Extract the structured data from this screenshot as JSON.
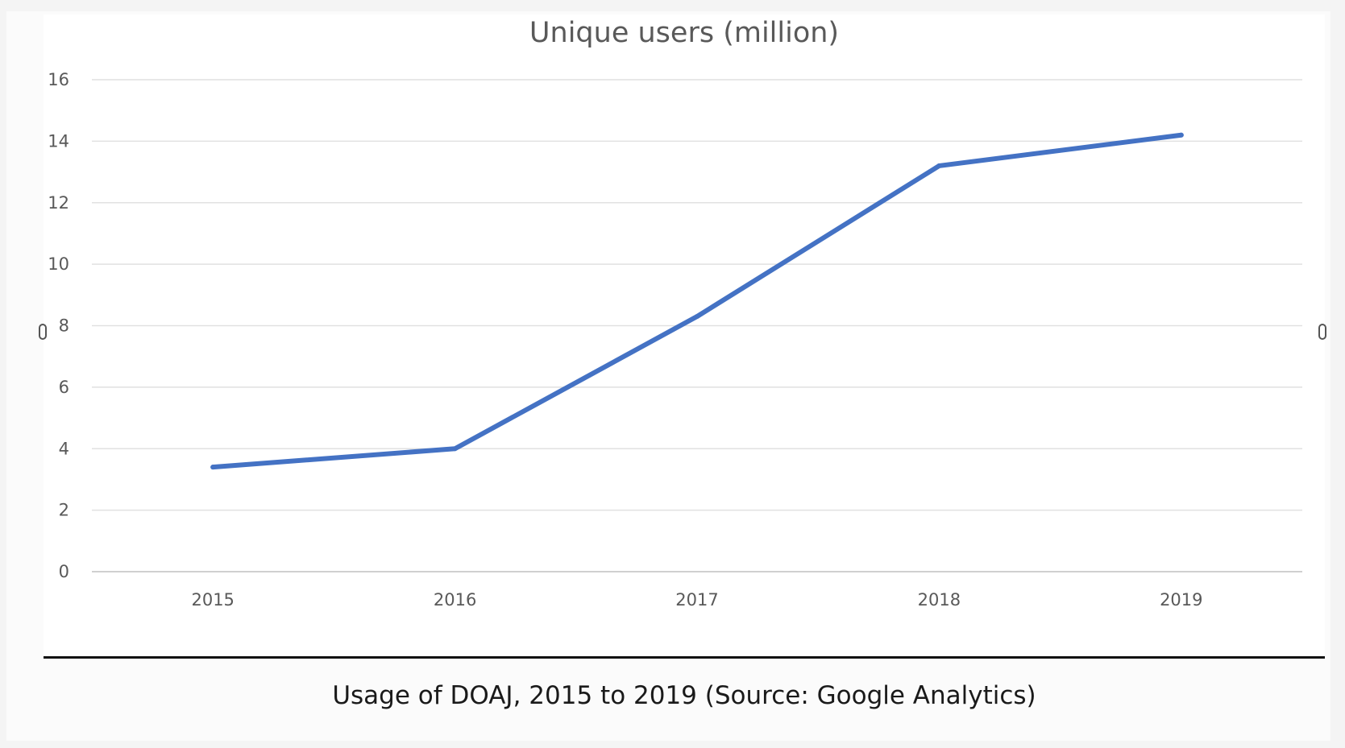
{
  "figure": {
    "caption": "Usage of DOAJ, 2015 to 2019 (Source: Google Analytics)"
  },
  "chart_data": {
    "type": "line",
    "title": "Unique users (million)",
    "xlabel": "",
    "ylabel": "",
    "categories": [
      "2015",
      "2016",
      "2017",
      "2018",
      "2019"
    ],
    "series": [
      {
        "values": [
          3.4,
          4.0,
          8.3,
          13.2,
          14.2
        ],
        "color": "#4472c4"
      }
    ],
    "ylim": [
      0,
      16
    ],
    "yticks": [
      0,
      2,
      4,
      6,
      8,
      10,
      12,
      14,
      16
    ],
    "grid": true,
    "legend": "none"
  }
}
